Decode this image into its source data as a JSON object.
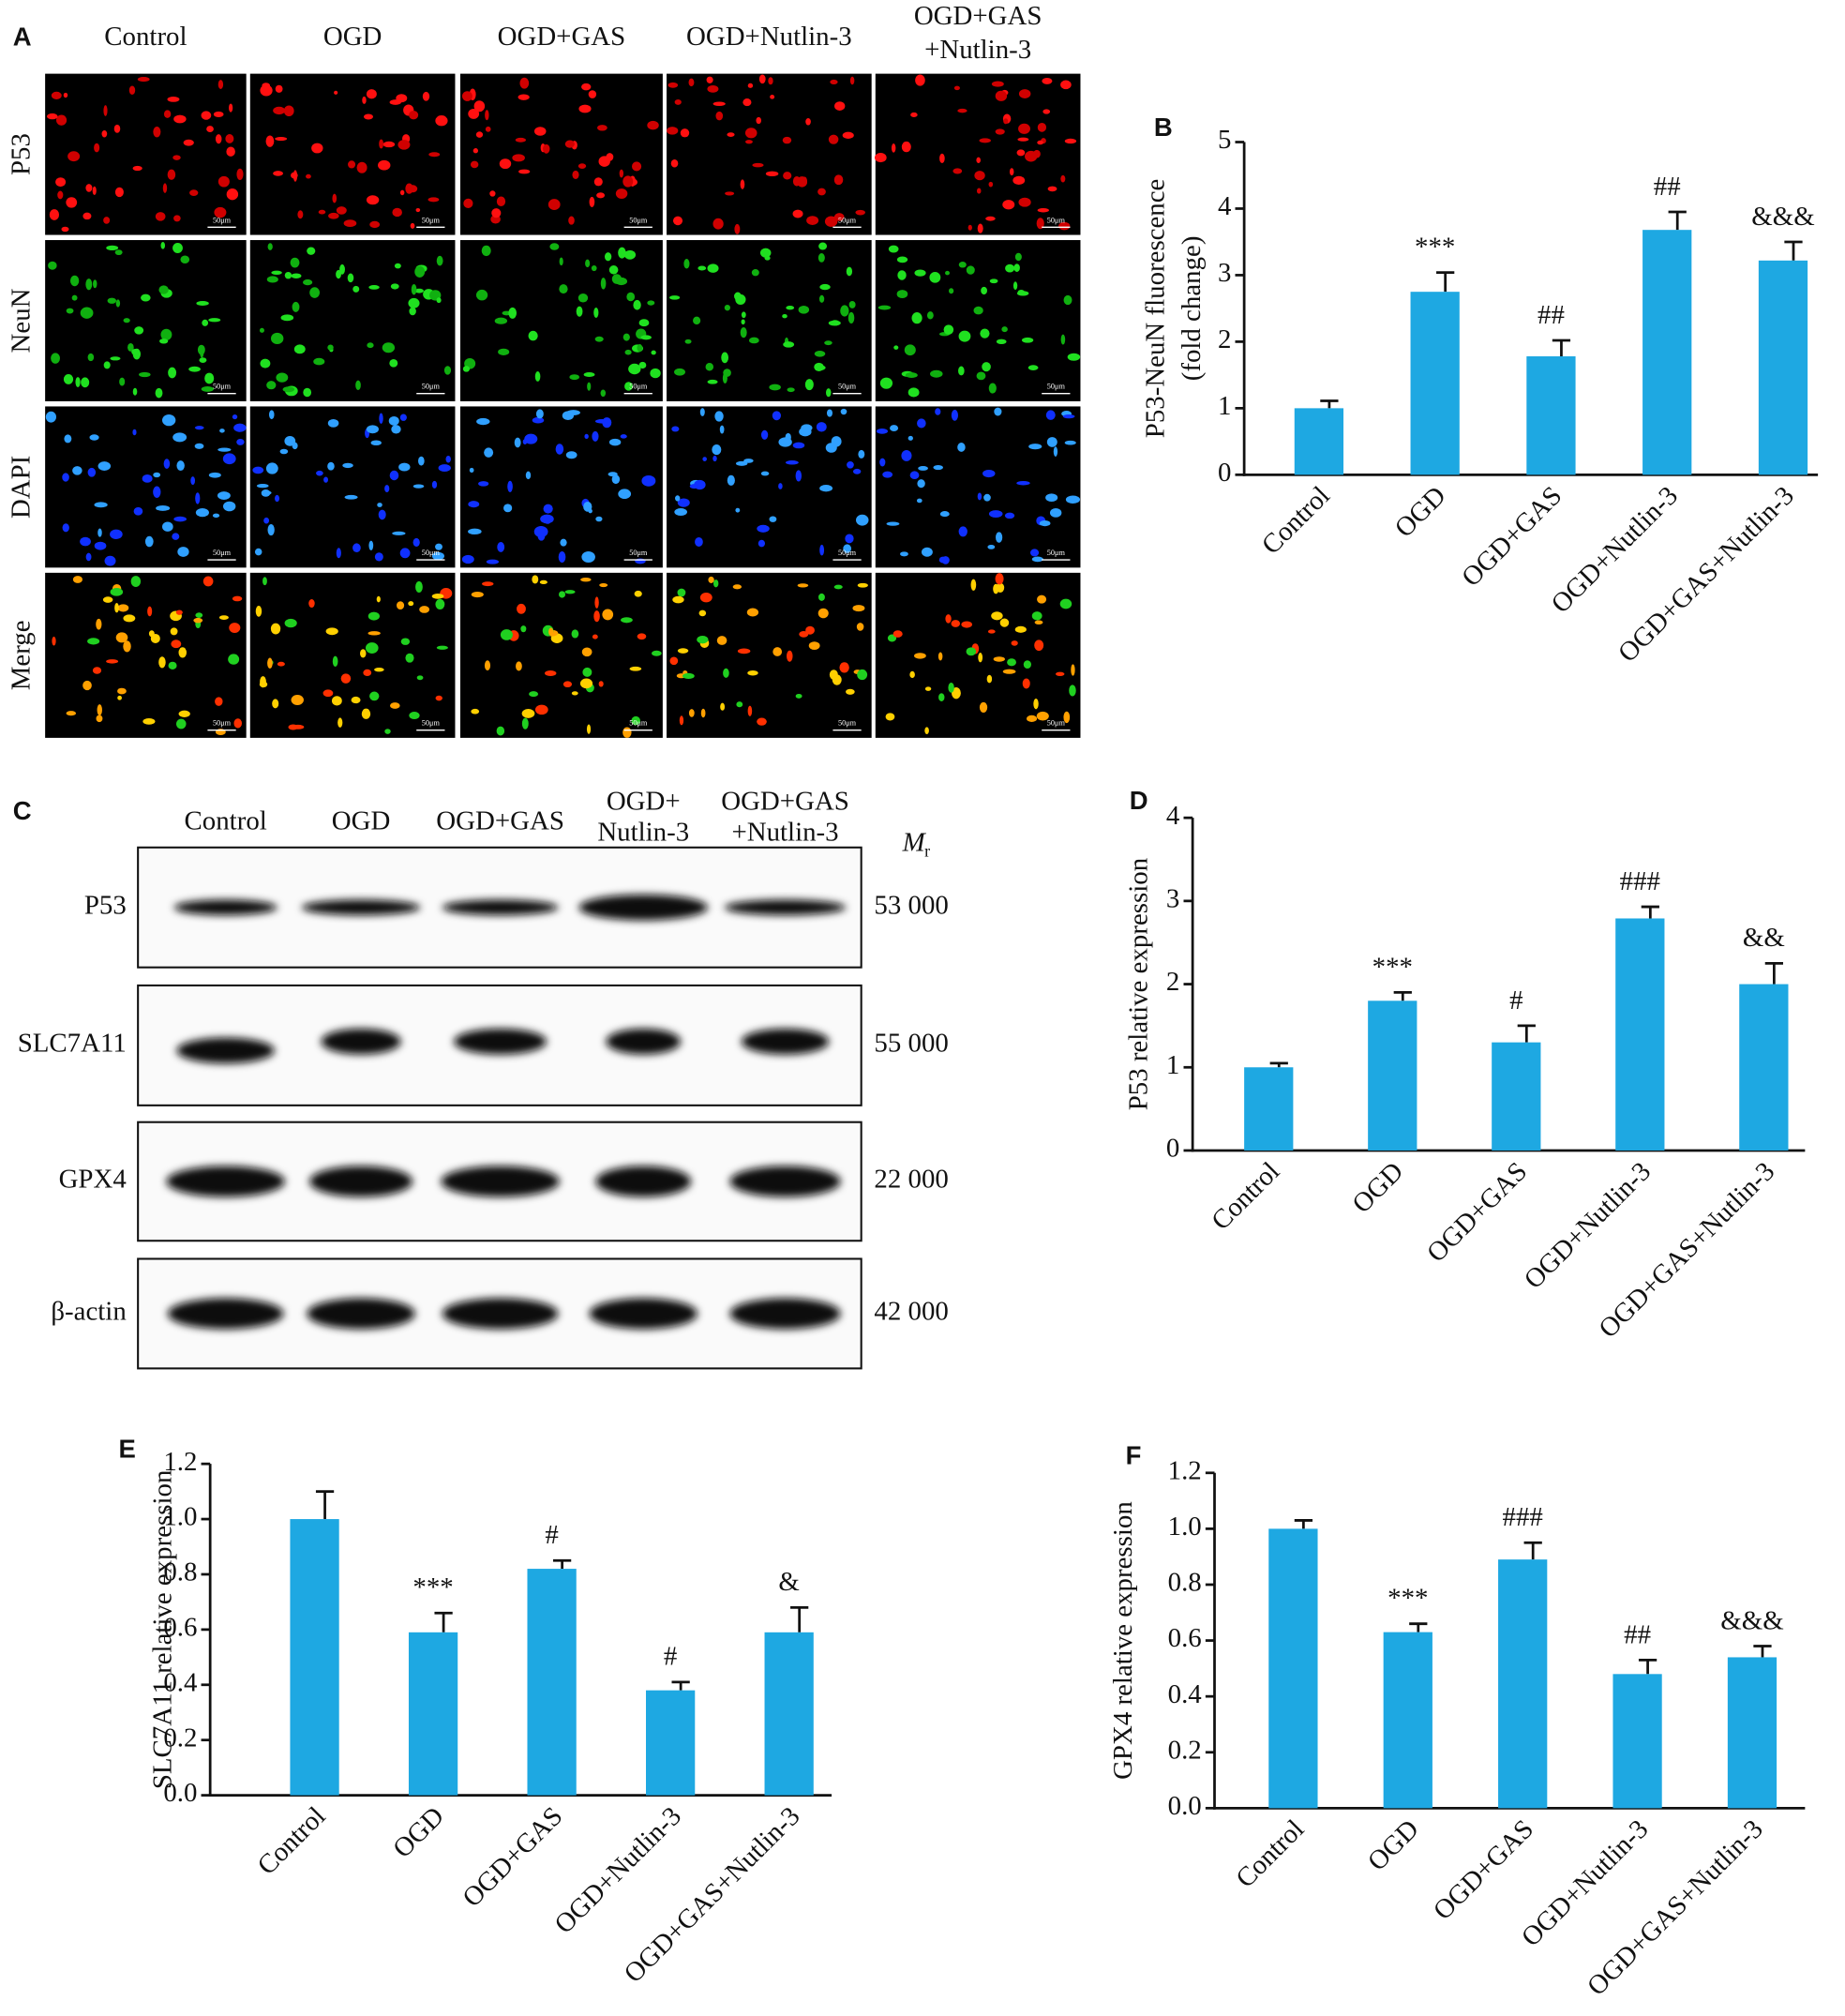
{
  "figure_a": {
    "panel": "A",
    "columns": [
      [
        "Control"
      ],
      [
        "OGD"
      ],
      [
        "OGD+GAS"
      ],
      [
        "OGD+Nutlin-3"
      ],
      [
        "OGD+GAS",
        "+Nutlin-3"
      ]
    ],
    "rows": [
      "P53",
      "NeuN",
      "DAPI",
      "Merge"
    ],
    "scale_bar": "50μm"
  },
  "blot": {
    "panel": "C",
    "columns": [
      [
        "Control"
      ],
      [
        "OGD"
      ],
      [
        "OGD+GAS"
      ],
      [
        "OGD+",
        "Nutlin-3"
      ],
      [
        "OGD+GAS",
        "+Nutlin-3"
      ]
    ],
    "mr_label": "M",
    "mr_sub": "r",
    "rows": [
      {
        "protein": "P53",
        "mr": "53 000"
      },
      {
        "protein": "SLC7A11",
        "mr": "55 000"
      },
      {
        "protein": "GPX4",
        "mr": "22 000"
      },
      {
        "protein": "β-actin",
        "mr": "42 000"
      }
    ]
  },
  "chart_data": [
    {
      "type": "bar",
      "panel": "B",
      "ylabel": [
        "P53-NeuN fluorescence",
        "(fold change)"
      ],
      "categories": [
        "Control",
        "OGD",
        "OGD+GAS",
        "OGD+Nutlin-3",
        "OGD+GAS+Nutlin-3"
      ],
      "values": [
        1.0,
        2.75,
        1.78,
        3.68,
        3.22
      ],
      "errors": [
        0.11,
        0.29,
        0.24,
        0.27,
        0.28
      ],
      "annotations": [
        null,
        "***",
        "##",
        "##",
        "&&&"
      ],
      "color": "#1ea8e2",
      "ylim": [
        0,
        5
      ],
      "yticks": [
        0,
        1,
        2,
        3,
        4,
        5
      ]
    },
    {
      "type": "bar",
      "panel": "D",
      "ylabel": [
        "P53 relative expression"
      ],
      "categories": [
        "Control",
        "OGD",
        "OGD+GAS",
        "OGD+Nutlin-3",
        "OGD+GAS+Nutlin-3"
      ],
      "values": [
        1.0,
        1.8,
        1.3,
        2.79,
        2.0
      ],
      "errors": [
        0.05,
        0.1,
        0.2,
        0.14,
        0.25
      ],
      "annotations": [
        null,
        "***",
        "#",
        "###",
        "&&"
      ],
      "color": "#1ea8e2",
      "ylim": [
        0,
        4
      ],
      "yticks": [
        0,
        1,
        2,
        3,
        4
      ]
    },
    {
      "type": "bar",
      "panel": "E",
      "ylabel": [
        "SLC7A11 relative expression"
      ],
      "categories": [
        "Control",
        "OGD",
        "OGD+GAS",
        "OGD+Nutlin-3",
        "OGD+GAS+Nutlin-3"
      ],
      "values": [
        1.0,
        0.59,
        0.82,
        0.38,
        0.59
      ],
      "errors": [
        0.1,
        0.07,
        0.03,
        0.03,
        0.09
      ],
      "annotations": [
        null,
        "***",
        "#",
        "#",
        "&"
      ],
      "color": "#1ea8e2",
      "ylim": [
        0,
        1.2
      ],
      "yticks": [
        {
          "value": 0,
          "label": "0.0"
        },
        0.2,
        0.4,
        0.6,
        0.8,
        {
          "value": 1,
          "label": "1.0"
        },
        1.2
      ]
    },
    {
      "type": "bar",
      "panel": "F",
      "ylabel": [
        "GPX4 relative expression"
      ],
      "categories": [
        "Control",
        "OGD",
        "OGD+GAS",
        "OGD+Nutlin-3",
        "OGD+GAS+Nutlin-3"
      ],
      "values": [
        1.0,
        0.63,
        0.89,
        0.48,
        0.54
      ],
      "errors": [
        0.03,
        0.03,
        0.06,
        0.05,
        0.04
      ],
      "annotations": [
        null,
        "***",
        "###",
        "##",
        "&&&"
      ],
      "color": "#1ea8e2",
      "ylim": [
        0,
        1.2
      ],
      "yticks": [
        {
          "value": 0,
          "label": "0.0"
        },
        0.2,
        0.4,
        0.6,
        0.8,
        {
          "value": 1,
          "label": "1.0"
        },
        1.2
      ]
    }
  ]
}
